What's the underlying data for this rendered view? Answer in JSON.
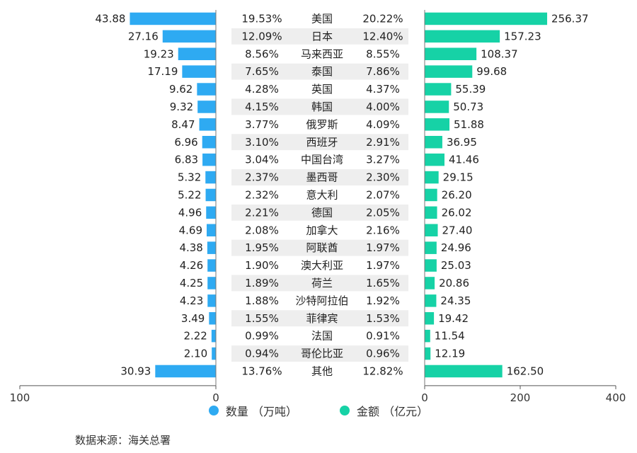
{
  "chart_data": {
    "type": "bar",
    "categories": [
      "美国",
      "日本",
      "马来西亚",
      "泰国",
      "英国",
      "韩国",
      "俄罗斯",
      "西班牙",
      "中国台湾",
      "墨西哥",
      "意大利",
      "德国",
      "加拿大",
      "阿联酋",
      "澳大利亚",
      "荷兰",
      "沙特阿拉伯",
      "菲律宾",
      "法国",
      "哥伦比亚",
      "其他"
    ],
    "series": [
      {
        "name": "数量 （万吨）",
        "color": "#2eaaf2",
        "xlim": [
          100,
          0
        ],
        "ticks": [
          "100",
          "0"
        ],
        "values": [
          43.88,
          27.16,
          19.23,
          17.19,
          9.62,
          9.32,
          8.47,
          6.96,
          6.83,
          5.32,
          5.22,
          4.96,
          4.69,
          4.38,
          4.26,
          4.25,
          4.23,
          3.49,
          2.22,
          2.1,
          30.93
        ],
        "labels": [
          "43.88",
          "27.16",
          "19.23",
          "17.19",
          "9.62",
          "9.32",
          "8.47",
          "6.96",
          "6.83",
          "5.32",
          "5.22",
          "4.96",
          "4.69",
          "4.38",
          "4.26",
          "4.25",
          "4.23",
          "3.49",
          "2.22",
          "2.10",
          "30.93"
        ],
        "share": [
          "19.53%",
          "12.09%",
          "8.56%",
          "7.65%",
          "4.28%",
          "4.15%",
          "3.77%",
          "3.10%",
          "3.04%",
          "2.37%",
          "2.32%",
          "2.21%",
          "2.08%",
          "1.95%",
          "1.90%",
          "1.89%",
          "1.88%",
          "1.55%",
          "0.99%",
          "0.94%",
          "13.76%"
        ]
      },
      {
        "name": "金额 （亿元）",
        "color": "#16d2a6",
        "xlim": [
          0,
          400
        ],
        "ticks": [
          "0",
          "200",
          "400"
        ],
        "values": [
          256.37,
          157.23,
          108.37,
          99.68,
          55.39,
          50.73,
          51.88,
          36.95,
          41.46,
          29.15,
          26.2,
          26.02,
          27.4,
          24.96,
          25.03,
          20.86,
          24.35,
          19.42,
          11.54,
          12.19,
          162.5
        ],
        "labels": [
          "256.37",
          "157.23",
          "108.37",
          "99.68",
          "55.39",
          "50.73",
          "51.88",
          "36.95",
          "41.46",
          "29.15",
          "26.20",
          "26.02",
          "27.40",
          "24.96",
          "25.03",
          "20.86",
          "24.35",
          "19.42",
          "11.54",
          "12.19",
          "162.50"
        ],
        "share": [
          "20.22%",
          "12.40%",
          "8.55%",
          "7.86%",
          "4.37%",
          "4.00%",
          "4.09%",
          "2.91%",
          "3.27%",
          "2.30%",
          "2.07%",
          "2.05%",
          "2.16%",
          "1.97%",
          "1.97%",
          "1.65%",
          "1.92%",
          "1.53%",
          "0.91%",
          "0.96%",
          "12.82%"
        ]
      }
    ],
    "legend_position": "bottom",
    "grid": false
  },
  "legend": {
    "qty": "数量 （万吨）",
    "amt": "金额 （亿元）"
  },
  "source": "数据来源：海关总署",
  "colors": {
    "qty": "#2eaaf2",
    "amt": "#16d2a6",
    "stripe": "#eeeeee"
  }
}
